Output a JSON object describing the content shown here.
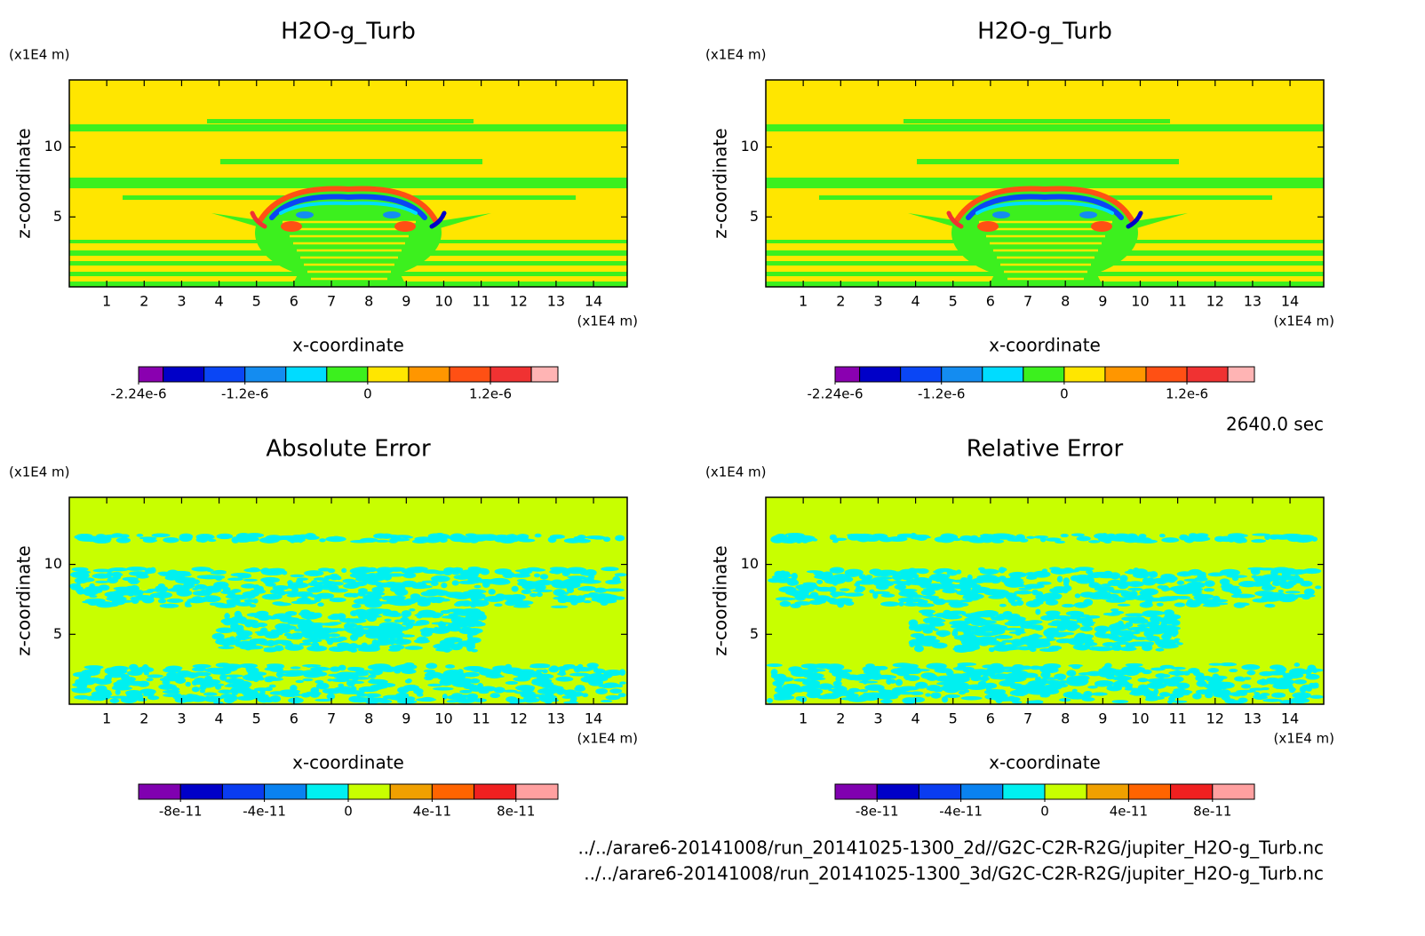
{
  "chart_data": [
    {
      "type": "contour",
      "title": "H2O-g_Turb",
      "x_label": "x-coordinate",
      "y_label": "z-coordinate",
      "x_unit": "(x1E4 m)",
      "y_unit": "(x1E4 m)",
      "xlim": [
        0,
        14.9
      ],
      "ylim": [
        0,
        14.8
      ],
      "xticks": [
        1,
        2,
        3,
        4,
        5,
        6,
        7,
        8,
        9,
        10,
        11,
        12,
        13,
        14
      ],
      "yticks": [
        5,
        10
      ],
      "colorbar": {
        "clim": [
          -2.24e-06,
          1.86e-06
        ],
        "levels": [
          -2e-06,
          -1.6e-06,
          -1.2e-06,
          -8e-07,
          -4e-07,
          0,
          4e-07,
          8e-07,
          1.2e-06,
          1.6e-06
        ],
        "colors": [
          "#8a00b0",
          "#0000c8",
          "#0a46f5",
          "#148cf0",
          "#00dcff",
          "#3cf01e",
          "#ffe600",
          "#ff9600",
          "#ff5014",
          "#f03232",
          "#ffb4b4"
        ],
        "ticks": [
          {
            "value": -2.24e-06,
            "label": "-2.24e-6"
          },
          {
            "value": -1.2e-06,
            "label": "-1.2e-6"
          },
          0,
          {
            "value": 1.2e-06,
            "label": "1.2e-6"
          }
        ]
      }
    },
    {
      "type": "contour",
      "title": "H2O-g_Turb",
      "x_label": "x-coordinate",
      "y_label": "z-coordinate",
      "x_unit": "(x1E4 m)",
      "y_unit": "(x1E4 m)",
      "xlim": [
        0,
        14.9
      ],
      "ylim": [
        0,
        14.8
      ],
      "xticks": [
        1,
        2,
        3,
        4,
        5,
        6,
        7,
        8,
        9,
        10,
        11,
        12,
        13,
        14
      ],
      "yticks": [
        5,
        10
      ],
      "colorbar": {
        "clim": [
          -2.24e-06,
          1.86e-06
        ],
        "levels": [
          -2e-06,
          -1.6e-06,
          -1.2e-06,
          -8e-07,
          -4e-07,
          0,
          4e-07,
          8e-07,
          1.2e-06,
          1.6e-06
        ],
        "colors": [
          "#8a00b0",
          "#0000c8",
          "#0a46f5",
          "#148cf0",
          "#00dcff",
          "#3cf01e",
          "#ffe600",
          "#ff9600",
          "#ff5014",
          "#f03232",
          "#ffb4b4"
        ],
        "ticks": [
          {
            "value": -2.24e-06,
            "label": "-2.24e-6"
          },
          {
            "value": -1.2e-06,
            "label": "-1.2e-6"
          },
          0,
          {
            "value": 1.2e-06,
            "label": "1.2e-6"
          }
        ]
      }
    },
    {
      "type": "contour",
      "title": "Absolute Error",
      "x_label": "x-coordinate",
      "y_label": "z-coordinate",
      "x_unit": "(x1E4 m)",
      "y_unit": "(x1E4 m)",
      "xlim": [
        0,
        14.9
      ],
      "ylim": [
        0,
        14.8
      ],
      "xticks": [
        1,
        2,
        3,
        4,
        5,
        6,
        7,
        8,
        9,
        10,
        11,
        12,
        13,
        14
      ],
      "yticks": [
        5,
        10
      ],
      "colorbar": {
        "clim": [
          -1e-10,
          1e-10
        ],
        "levels": [
          -8e-11,
          -6e-11,
          -4e-11,
          -2e-11,
          0,
          2e-11,
          4e-11,
          6e-11,
          8e-11
        ],
        "colors": [
          "#8000b0",
          "#0000c8",
          "#0a3cf0",
          "#0a82f0",
          "#00f0f0",
          "#c8ff00",
          "#f0a000",
          "#ff6400",
          "#f02020",
          "#ffa0a0"
        ],
        "ticks": [
          {
            "value": -8e-11,
            "label": "-8e-11"
          },
          {
            "value": -4e-11,
            "label": "-4e-11"
          },
          0,
          {
            "value": 4e-11,
            "label": "4e-11"
          },
          {
            "value": 8e-11,
            "label": "8e-11"
          }
        ]
      }
    },
    {
      "type": "contour",
      "title": "Relative Error",
      "x_label": "x-coordinate",
      "y_label": "z-coordinate",
      "x_unit": "(x1E4 m)",
      "y_unit": "(x1E4 m)",
      "xlim": [
        0,
        14.9
      ],
      "ylim": [
        0,
        14.8
      ],
      "xticks": [
        1,
        2,
        3,
        4,
        5,
        6,
        7,
        8,
        9,
        10,
        11,
        12,
        13,
        14
      ],
      "yticks": [
        5,
        10
      ],
      "colorbar": {
        "clim": [
          -1e-10,
          1e-10
        ],
        "levels": [
          -8e-11,
          -6e-11,
          -4e-11,
          -2e-11,
          0,
          2e-11,
          4e-11,
          6e-11,
          8e-11
        ],
        "colors": [
          "#8000b0",
          "#0000c8",
          "#0a3cf0",
          "#0a82f0",
          "#00f0f0",
          "#c8ff00",
          "#f0a000",
          "#ff6400",
          "#f02020",
          "#ffa0a0"
        ],
        "ticks": [
          {
            "value": -8e-11,
            "label": "-8e-11"
          },
          {
            "value": -4e-11,
            "label": "-4e-11"
          },
          0,
          {
            "value": 4e-11,
            "label": "4e-11"
          },
          {
            "value": 8e-11,
            "label": "8e-11"
          }
        ]
      }
    }
  ],
  "annotations": {
    "time": "2640.0 sec",
    "files": [
      "../../arare6-20141008/run_20141025-1300_2d//G2C-C2R-R2G/jupiter_H2O-g_Turb.nc",
      "../../arare6-20141008/run_20141025-1300_3d/G2C-C2R-R2G/jupiter_H2O-g_Turb.nc"
    ]
  }
}
